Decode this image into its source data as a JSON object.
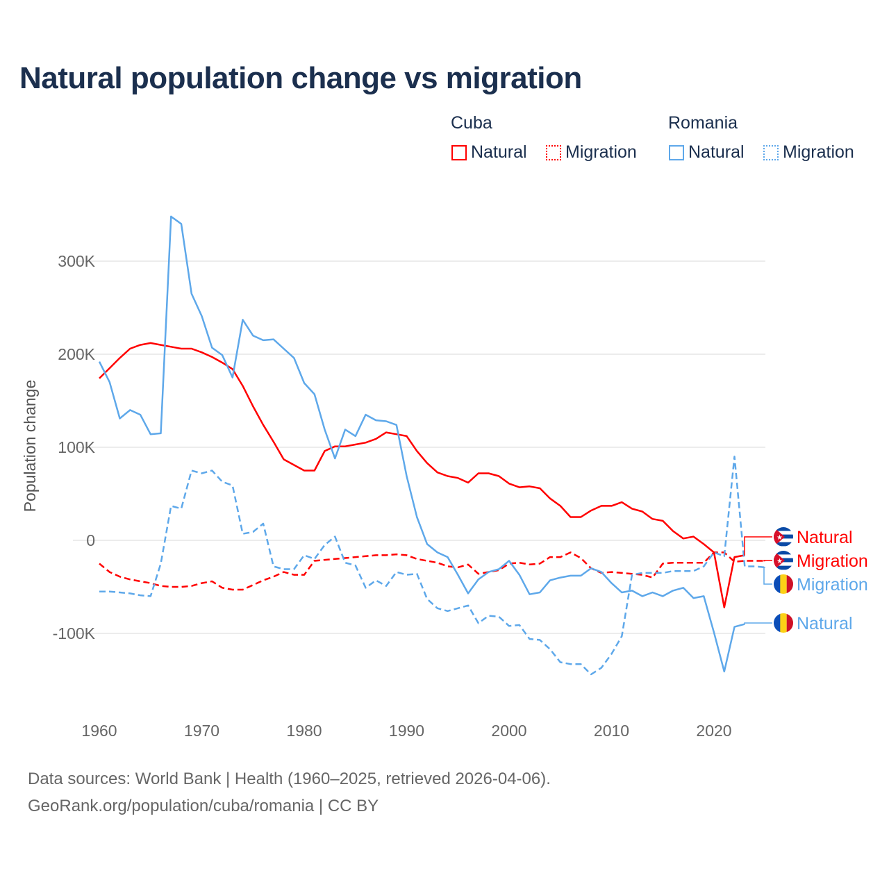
{
  "chart_data": {
    "type": "line",
    "title": "Natural population change vs migration",
    "ylabel": "Population change",
    "xlabel": "",
    "xlim": [
      1960,
      2025
    ],
    "ylim": [
      -170000,
      355000
    ],
    "x_ticks": [
      1960,
      1970,
      1980,
      1990,
      2000,
      2010,
      2020
    ],
    "x_tick_labels": [
      "1960",
      "1970",
      "1980",
      "1990",
      "2000",
      "2010",
      "2020"
    ],
    "y_ticks": [
      -100000,
      0,
      100000,
      200000,
      300000
    ],
    "y_tick_labels": [
      "-100K",
      "0",
      "100K",
      "200K",
      "300K"
    ],
    "grid": true,
    "legend_position": "top-right",
    "legend_groups": [
      {
        "name": "Cuba",
        "items": [
          "Natural",
          "Migration"
        ]
      },
      {
        "name": "Romania",
        "items": [
          "Natural",
          "Migration"
        ]
      }
    ],
    "series": [
      {
        "name": "Cuba Natural",
        "label": "Natural",
        "country": "Cuba",
        "color": "#ff0000",
        "dash": false,
        "start": 1960,
        "values": [
          174,
          185,
          196,
          206,
          210,
          212,
          210,
          208,
          206,
          206,
          202,
          197,
          191,
          184,
          166,
          144,
          124,
          106,
          87,
          81,
          75,
          75,
          96,
          101,
          101,
          103,
          105,
          109,
          116,
          114,
          112,
          96,
          83,
          73,
          69,
          67,
          62,
          72,
          72,
          69,
          61,
          57,
          58,
          56,
          45,
          37,
          25,
          25,
          32,
          37,
          37,
          41,
          34,
          31,
          23,
          21,
          10,
          2,
          4,
          -4,
          -13,
          -72,
          -18,
          -16
        ]
      },
      {
        "name": "Cuba Migration",
        "label": "Migration",
        "country": "Cuba",
        "color": "#ff0000",
        "dash": true,
        "start": 1960,
        "values": [
          -25,
          -34,
          -39,
          -42,
          -44,
          -46,
          -49,
          -50,
          -50,
          -49,
          -46,
          -44,
          -51,
          -53,
          -53,
          -48,
          -43,
          -39,
          -34,
          -37,
          -37,
          -22,
          -21,
          -20,
          -19,
          -18,
          -17,
          -16,
          -16,
          -15,
          -16,
          -20,
          -22,
          -24,
          -28,
          -29,
          -26,
          -36,
          -34,
          -32,
          -25,
          -24,
          -26,
          -25,
          -18,
          -18,
          -13,
          -19,
          -30,
          -35,
          -34,
          -35,
          -36,
          -37,
          -40,
          -25,
          -24,
          -24,
          -24,
          -24,
          -13,
          -13,
          -23,
          -22,
          -22,
          -22
        ]
      },
      {
        "name": "Romania Migration",
        "label": "Migration",
        "country": "Romania",
        "color": "#5ea8ea",
        "dash": true,
        "start": 1960,
        "values": [
          -55,
          -55,
          -56,
          -57,
          -59,
          -60,
          -25,
          37,
          34,
          75,
          72,
          75,
          63,
          59,
          7,
          9,
          18,
          -28,
          -31,
          -31,
          -16,
          -20,
          -5,
          4,
          -24,
          -27,
          -51,
          -43,
          -49,
          -34,
          -37,
          -36,
          -63,
          -73,
          -76,
          -73,
          -70,
          -89,
          -81,
          -82,
          -92,
          -91,
          -106,
          -107,
          -117,
          -131,
          -133,
          -133,
          -144,
          -137,
          -122,
          -103,
          -37,
          -35,
          -35,
          -35,
          -33,
          -33,
          -33,
          -28,
          -13,
          -17,
          90,
          -28,
          -28,
          -29
        ]
      },
      {
        "name": "Romania Natural",
        "label": "Natural",
        "country": "Romania",
        "color": "#5ea8ea",
        "dash": false,
        "start": 1960,
        "values": [
          192,
          170,
          131,
          140,
          135,
          114,
          115,
          348,
          340,
          265,
          241,
          207,
          199,
          175,
          237,
          220,
          215,
          216,
          206,
          196,
          169,
          157,
          119,
          88,
          119,
          112,
          135,
          129,
          128,
          124,
          69,
          25,
          -4,
          -13,
          -18,
          -37,
          -57,
          -42,
          -34,
          -31,
          -22,
          -37,
          -58,
          -56,
          -43,
          -40,
          -38,
          -38,
          -30,
          -34,
          -46,
          -56,
          -54,
          -60,
          -56,
          -60,
          -54,
          -51,
          -62,
          -60,
          -99,
          -141,
          -93,
          -90
        ]
      }
    ],
    "value_unit": "thousands"
  },
  "source": {
    "line1": "Data sources: World Bank | Health (1960–2025, retrieved 2026-04-06).",
    "line2": "GeoRank.org/population/cuba/romania | CC BY"
  }
}
